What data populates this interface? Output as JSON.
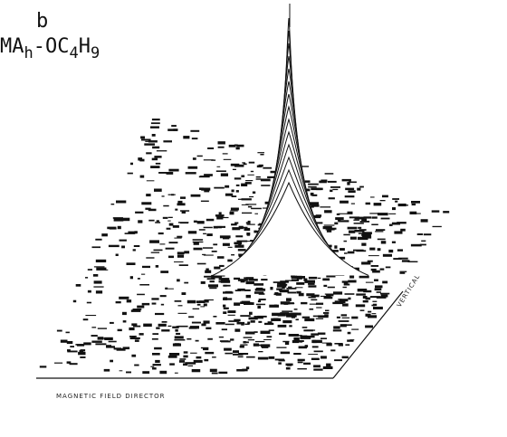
{
  "figure": {
    "panel_label": "b",
    "sample_label": [
      {
        "text": "MA"
      },
      {
        "text": "h",
        "sub": true
      },
      {
        "text": "-OC"
      },
      {
        "text": "4",
        "sub": true
      },
      {
        "text": "H"
      },
      {
        "text": "9",
        "sub": true
      }
    ],
    "x_axis_label": "MAGNETIC FIELD DIRECTOR",
    "y_axis_label": "VERTICAL"
  }
}
